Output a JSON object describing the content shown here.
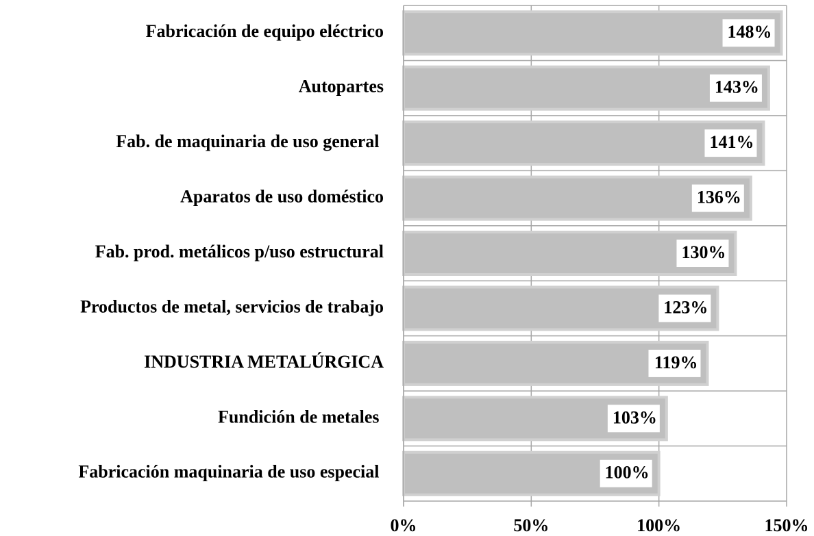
{
  "chart_data": {
    "type": "barh",
    "categories": [
      "Fabricación de equipo eléctrico",
      "Autopartes",
      "Fab. de maquinaria de uso general ",
      "Aparatos de uso doméstico",
      "Fab. prod. metálicos p/uso estructural",
      "Productos de metal, servicios de trabajo",
      "INDUSTRIA METALÚRGICA",
      "Fundición de metales ",
      "Fabricación maquinaria de uso especial "
    ],
    "values": [
      148,
      143,
      141,
      136,
      130,
      123,
      119,
      103,
      100
    ],
    "value_labels": [
      "148%",
      "143%",
      "141%",
      "136%",
      "130%",
      "123%",
      "119%",
      "103%",
      "100%"
    ],
    "color": "#bfbfbf",
    "xlim": [
      0,
      150
    ],
    "xticks": [
      {
        "value": 0,
        "label": "0%"
      },
      {
        "value": 50,
        "label": "50%"
      },
      {
        "value": 100,
        "label": "100%"
      },
      {
        "value": 150,
        "label": "150%"
      }
    ],
    "grid": true
  }
}
